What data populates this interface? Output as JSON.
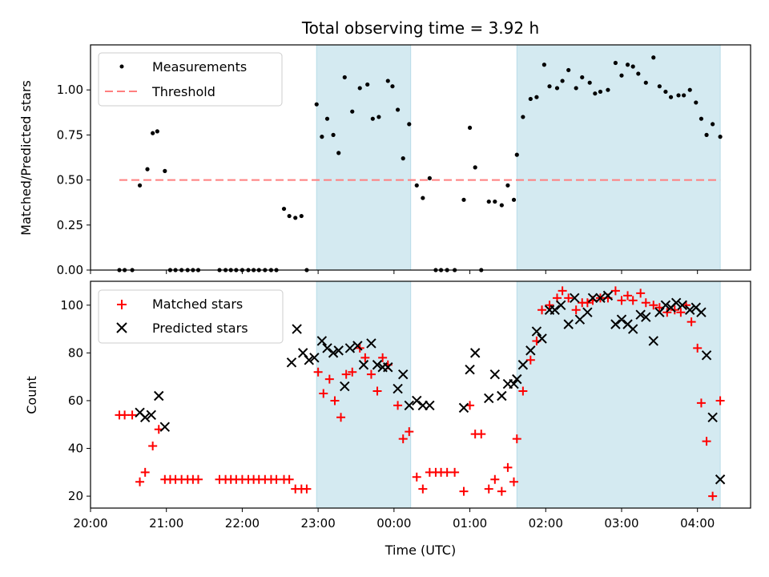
{
  "chart_data": {
    "title": "Total observing time = 3.92 h",
    "xlabel": "Time (UTC)",
    "x_unit": "hours after 20:00 UTC",
    "xlim": [
      0,
      8.7
    ],
    "x_ticks": [
      {
        "value": 0,
        "label": "20:00"
      },
      {
        "value": 1,
        "label": "21:00"
      },
      {
        "value": 2,
        "label": "22:00"
      },
      {
        "value": 3,
        "label": "23:00"
      },
      {
        "value": 4,
        "label": "00:00"
      },
      {
        "value": 5,
        "label": "01:00"
      },
      {
        "value": 6,
        "label": "02:00"
      },
      {
        "value": 7,
        "label": "03:00"
      },
      {
        "value": 8,
        "label": "04:00"
      }
    ],
    "shaded_intervals": [
      [
        2.98,
        4.22
      ],
      [
        5.62,
        8.3
      ]
    ],
    "shade_color": "#d4eaf1",
    "panels": [
      {
        "type": "scatter",
        "ylabel": "Matched/Predicted stars",
        "ylim": [
          0,
          1.25
        ],
        "y_ticks": [
          {
            "value": 0,
            "label": "0.00"
          },
          {
            "value": 0.25,
            "label": "0.25"
          },
          {
            "value": 0.5,
            "label": "0.50"
          },
          {
            "value": 0.75,
            "label": "0.75"
          },
          {
            "value": 1.0,
            "label": "1.00"
          }
        ],
        "legend": {
          "placement": "upper-left",
          "entries": [
            {
              "label": "Measurements",
              "marker": "dot",
              "color": "#000000"
            },
            {
              "label": "Threshold",
              "marker": "dashed-line",
              "color": "#ff7f7f"
            }
          ]
        },
        "threshold": {
          "name": "Threshold",
          "value": 0.5,
          "x_range": [
            0.38,
            8.3
          ],
          "color": "#ff7f7f"
        },
        "series": [
          {
            "name": "Measurements",
            "color": "#000000",
            "x": [
              0.38,
              0.45,
              0.55,
              0.65,
              0.75,
              0.82,
              0.88,
              0.98,
              1.05,
              1.12,
              1.2,
              1.28,
              1.35,
              1.42,
              1.7,
              1.78,
              1.85,
              1.92,
              2.0,
              2.08,
              2.15,
              2.22,
              2.3,
              2.38,
              2.45,
              2.55,
              2.62,
              2.7,
              2.78,
              2.85,
              2.98,
              3.05,
              3.12,
              3.2,
              3.27,
              3.35,
              3.45,
              3.55,
              3.65,
              3.72,
              3.8,
              3.92,
              3.98,
              4.05,
              4.12,
              4.2,
              4.3,
              4.38,
              4.47,
              4.55,
              4.62,
              4.7,
              4.8,
              4.92,
              5.0,
              5.07,
              5.15,
              5.25,
              5.33,
              5.42,
              5.5,
              5.58,
              5.62,
              5.7,
              5.8,
              5.88,
              5.98,
              6.05,
              6.15,
              6.22,
              6.3,
              6.4,
              6.48,
              6.58,
              6.65,
              6.72,
              6.82,
              6.92,
              7.0,
              7.08,
              7.15,
              7.22,
              7.32,
              7.42,
              7.5,
              7.58,
              7.65,
              7.75,
              7.82,
              7.9,
              7.98,
              8.05,
              8.12,
              8.2,
              8.3
            ],
            "y": [
              0,
              0,
              0,
              0.47,
              0.56,
              0.76,
              0.77,
              0.55,
              0,
              0,
              0,
              0,
              0,
              0,
              0,
              0,
              0,
              0,
              0,
              0,
              0,
              0,
              0,
              0,
              0,
              0.34,
              0.3,
              0.29,
              0.3,
              0,
              0.92,
              0.74,
              0.84,
              0.75,
              0.65,
              1.07,
              0.88,
              1.01,
              1.03,
              0.84,
              0.85,
              1.05,
              1.02,
              0.89,
              0.62,
              0.81,
              0.47,
              0.4,
              0.51,
              0,
              0,
              0,
              0,
              0.39,
              0.79,
              0.57,
              0,
              0.38,
              0.38,
              0.36,
              0.47,
              0.39,
              0.64,
              0.85,
              0.95,
              0.96,
              1.14,
              1.02,
              1.01,
              1.05,
              1.11,
              1.01,
              1.07,
              1.04,
              0.98,
              0.99,
              1.0,
              1.15,
              1.08,
              1.14,
              1.13,
              1.09,
              1.04,
              1.18,
              1.02,
              0.99,
              0.96,
              0.97,
              0.97,
              1.0,
              0.93,
              0.84,
              0.75,
              0.81,
              0.74
            ]
          }
        ]
      },
      {
        "type": "scatter",
        "ylabel": "Count",
        "ylim": [
          15,
          110
        ],
        "y_ticks": [
          {
            "value": 20,
            "label": "20"
          },
          {
            "value": 40,
            "label": "40"
          },
          {
            "value": 60,
            "label": "60"
          },
          {
            "value": 80,
            "label": "80"
          },
          {
            "value": 100,
            "label": "100"
          }
        ],
        "legend": {
          "placement": "upper-left",
          "entries": [
            {
              "label": "Matched stars",
              "marker": "plus",
              "color": "#ff0000"
            },
            {
              "label": "Predicted stars",
              "marker": "x",
              "color": "#000000"
            }
          ]
        },
        "series": [
          {
            "name": "Matched stars",
            "marker": "plus",
            "color": "#ff0000",
            "x": [
              0.38,
              0.45,
              0.55,
              0.65,
              0.72,
              0.82,
              0.9,
              0.98,
              1.05,
              1.12,
              1.2,
              1.28,
              1.35,
              1.42,
              1.7,
              1.78,
              1.85,
              1.92,
              2.0,
              2.08,
              2.15,
              2.22,
              2.3,
              2.38,
              2.45,
              2.55,
              2.62,
              2.7,
              2.78,
              2.85,
              3.0,
              3.07,
              3.15,
              3.22,
              3.3,
              3.37,
              3.45,
              3.55,
              3.62,
              3.7,
              3.78,
              3.85,
              3.92,
              4.05,
              4.12,
              4.2,
              4.3,
              4.38,
              4.47,
              4.55,
              4.62,
              4.7,
              4.8,
              4.92,
              5.0,
              5.07,
              5.15,
              5.25,
              5.33,
              5.42,
              5.5,
              5.58,
              5.62,
              5.7,
              5.8,
              5.88,
              5.95,
              6.05,
              6.15,
              6.22,
              6.3,
              6.4,
              6.48,
              6.55,
              6.62,
              6.72,
              6.82,
              6.92,
              7.0,
              7.08,
              7.15,
              7.25,
              7.32,
              7.42,
              7.5,
              7.6,
              7.7,
              7.78,
              7.85,
              7.92,
              8.0,
              8.05,
              8.12,
              8.2,
              8.3
            ],
            "y": [
              54,
              54,
              54,
              26,
              30,
              41,
              48,
              27,
              27,
              27,
              27,
              27,
              27,
              27,
              27,
              27,
              27,
              27,
              27,
              27,
              27,
              27,
              27,
              27,
              27,
              27,
              27,
              23,
              23,
              23,
              72,
              63,
              69,
              60,
              53,
              71,
              72,
              82,
              78,
              71,
              64,
              78,
              75,
              58,
              44,
              47,
              28,
              23,
              30,
              30,
              30,
              30,
              30,
              22,
              58,
              46,
              46,
              23,
              27,
              22,
              32,
              26,
              44,
              64,
              77,
              85,
              98,
              100,
              103,
              106,
              103,
              98,
              101,
              101,
              102,
              103,
              103,
              106,
              102,
              104,
              102,
              105,
              101,
              100,
              99,
              97,
              98,
              97,
              100,
              93,
              82,
              59,
              43,
              20,
              60
            ]
          },
          {
            "name": "Predicted stars",
            "marker": "x",
            "color": "#000000",
            "x": [
              0.65,
              0.72,
              0.8,
              0.9,
              0.98,
              2.65,
              2.72,
              2.8,
              2.88,
              2.95,
              3.05,
              3.12,
              3.2,
              3.27,
              3.35,
              3.42,
              3.52,
              3.6,
              3.7,
              3.78,
              3.85,
              3.92,
              4.05,
              4.12,
              4.2,
              4.3,
              4.38,
              4.47,
              4.92,
              5.0,
              5.07,
              5.25,
              5.33,
              5.42,
              5.5,
              5.58,
              5.62,
              5.7,
              5.8,
              5.88,
              5.95,
              6.05,
              6.12,
              6.2,
              6.3,
              6.38,
              6.45,
              6.55,
              6.62,
              6.72,
              6.82,
              6.92,
              7.0,
              7.08,
              7.15,
              7.25,
              7.32,
              7.42,
              7.5,
              7.58,
              7.65,
              7.72,
              7.8,
              7.9,
              7.98,
              8.05,
              8.12,
              8.2,
              8.3
            ],
            "y": [
              55,
              53,
              54,
              62,
              49,
              76,
              90,
              80,
              77,
              78,
              85,
              82,
              80,
              81,
              66,
              82,
              83,
              75,
              84,
              75,
              74,
              74,
              65,
              71,
              58,
              60,
              58,
              58,
              57,
              73,
              80,
              61,
              71,
              62,
              67,
              67,
              69,
              75,
              81,
              89,
              86,
              98,
              98,
              100,
              92,
              103,
              94,
              97,
              103,
              103,
              104,
              92,
              94,
              92,
              90,
              96,
              95,
              85,
              97,
              100,
              99,
              101,
              100,
              98,
              99,
              97,
              79,
              53,
              27
            ]
          }
        ]
      }
    ]
  }
}
